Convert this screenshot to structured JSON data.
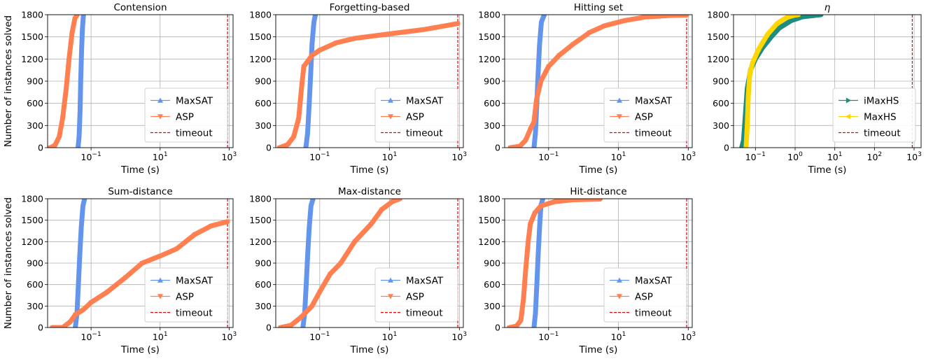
{
  "colors": {
    "maxsat": "#6495ED",
    "asp": "#FF7F50",
    "timeout": "#E8000B",
    "imaxhs": "#1E8C7E",
    "maxhs": "#FFD700"
  },
  "chart_data": [
    {
      "type": "line",
      "title": "Contension",
      "xlabel": "Time (s)",
      "ylabel": "Number of instances solved",
      "xscale": "log",
      "xlim": [
        0.0055,
        1300
      ],
      "ylim": [
        0,
        1800
      ],
      "yticks": [
        "0",
        "300",
        "600",
        "900",
        "1200",
        "1500",
        "1800"
      ],
      "xticks": [
        {
          "v": 0.1,
          "base": "10",
          "exp": "−1"
        },
        {
          "v": 10,
          "base": "10",
          "exp": "1"
        },
        {
          "v": 1000,
          "base": "10",
          "exp": "3"
        }
      ],
      "grid": true,
      "legend_position": "lower-right",
      "series": [
        {
          "name": "MaxSAT",
          "marker": "^",
          "color": "#6495ED",
          "points": [
            [
              0.042,
              0
            ],
            [
              0.045,
              150
            ],
            [
              0.048,
              500
            ],
            [
              0.05,
              900
            ],
            [
              0.053,
              1300
            ],
            [
              0.056,
              1600
            ],
            [
              0.06,
              1800
            ]
          ]
        },
        {
          "name": "ASP",
          "marker": "v",
          "color": "#FF7F50",
          "points": [
            [
              0.0065,
              0
            ],
            [
              0.009,
              30
            ],
            [
              0.012,
              150
            ],
            [
              0.015,
              400
            ],
            [
              0.019,
              800
            ],
            [
              0.023,
              1200
            ],
            [
              0.028,
              1550
            ],
            [
              0.034,
              1750
            ],
            [
              0.04,
              1800
            ]
          ]
        }
      ],
      "timeout": {
        "name": "timeout",
        "x": 900
      }
    },
    {
      "type": "line",
      "title": "Forgetting-based",
      "xlabel": "Time (s)",
      "ylabel": "",
      "xscale": "log",
      "xlim": [
        0.0055,
        1300
      ],
      "ylim": [
        0,
        1800
      ],
      "yticks": [
        "0",
        "300",
        "600",
        "900",
        "1200",
        "1500",
        "1800"
      ],
      "xticks": [
        {
          "v": 0.1,
          "base": "10",
          "exp": "−1"
        },
        {
          "v": 10,
          "base": "10",
          "exp": "1"
        },
        {
          "v": 1000,
          "base": "10",
          "exp": "3"
        }
      ],
      "grid": true,
      "legend_position": "lower-right",
      "series": [
        {
          "name": "MaxSAT",
          "marker": "^",
          "color": "#6495ED",
          "points": [
            [
              0.04,
              0
            ],
            [
              0.045,
              200
            ],
            [
              0.05,
              600
            ],
            [
              0.055,
              1000
            ],
            [
              0.06,
              1400
            ],
            [
              0.068,
              1700
            ],
            [
              0.075,
              1800
            ]
          ]
        },
        {
          "name": "ASP",
          "marker": "v",
          "color": "#FF7F50",
          "points": [
            [
              0.007,
              0
            ],
            [
              0.012,
              40
            ],
            [
              0.018,
              150
            ],
            [
              0.025,
              400
            ],
            [
              0.03,
              800
            ],
            [
              0.035,
              1100
            ],
            [
              0.06,
              1250
            ],
            [
              0.1,
              1320
            ],
            [
              0.3,
              1420
            ],
            [
              1,
              1480
            ],
            [
              10,
              1540
            ],
            [
              100,
              1600
            ],
            [
              900,
              1680
            ]
          ]
        }
      ],
      "timeout": {
        "name": "timeout",
        "x": 900
      }
    },
    {
      "type": "line",
      "title": "Hitting set",
      "xlabel": "Time (s)",
      "ylabel": "",
      "xscale": "log",
      "xlim": [
        0.0055,
        1300
      ],
      "ylim": [
        0,
        1800
      ],
      "yticks": [
        "0",
        "300",
        "600",
        "900",
        "1200",
        "1500",
        "1800"
      ],
      "xticks": [
        {
          "v": 0.1,
          "base": "10",
          "exp": "−1"
        },
        {
          "v": 10,
          "base": "10",
          "exp": "1"
        },
        {
          "v": 1000,
          "base": "10",
          "exp": "3"
        }
      ],
      "grid": true,
      "legend_position": "lower-right",
      "series": [
        {
          "name": "MaxSAT",
          "marker": "^",
          "color": "#6495ED",
          "points": [
            [
              0.038,
              0
            ],
            [
              0.042,
              200
            ],
            [
              0.046,
              600
            ],
            [
              0.05,
              1000
            ],
            [
              0.055,
              1400
            ],
            [
              0.062,
              1700
            ],
            [
              0.075,
              1800
            ]
          ]
        },
        {
          "name": "ASP",
          "marker": "v",
          "color": "#FF7F50",
          "points": [
            [
              0.008,
              0
            ],
            [
              0.015,
              20
            ],
            [
              0.022,
              100
            ],
            [
              0.03,
              250
            ],
            [
              0.038,
              350
            ],
            [
              0.045,
              650
            ],
            [
              0.06,
              900
            ],
            [
              0.1,
              1100
            ],
            [
              0.2,
              1250
            ],
            [
              0.5,
              1400
            ],
            [
              1.5,
              1560
            ],
            [
              4,
              1650
            ],
            [
              15,
              1720
            ],
            [
              60,
              1770
            ],
            [
              300,
              1790
            ],
            [
              900,
              1795
            ]
          ]
        }
      ],
      "timeout": {
        "name": "timeout",
        "x": 900
      }
    },
    {
      "type": "line",
      "title": "η",
      "xlabel": "Time (s)",
      "ylabel": "",
      "xscale": "log",
      "xlim": [
        0.028,
        1500
      ],
      "ylim": [
        0,
        1800
      ],
      "yticks": [
        "0",
        "300",
        "600",
        "900",
        "1200",
        "1500",
        "1800"
      ],
      "xticks": [
        {
          "v": 0.1,
          "base": "10",
          "exp": "−1"
        },
        {
          "v": 1,
          "base": "10",
          "exp": "0"
        },
        {
          "v": 10,
          "base": "10",
          "exp": "1"
        },
        {
          "v": 100,
          "base": "10",
          "exp": "2"
        },
        {
          "v": 1000,
          "base": "10",
          "exp": "3"
        }
      ],
      "grid": true,
      "legend_position": "lower-right",
      "series": [
        {
          "name": "iMaxHS",
          "marker": ">",
          "color": "#1E8C7E",
          "points": [
            [
              0.045,
              0
            ],
            [
              0.05,
              100
            ],
            [
              0.055,
              400
            ],
            [
              0.062,
              800
            ],
            [
              0.075,
              1050
            ],
            [
              0.1,
              1200
            ],
            [
              0.15,
              1350
            ],
            [
              0.25,
              1500
            ],
            [
              0.4,
              1620
            ],
            [
              0.8,
              1720
            ],
            [
              1.5,
              1770
            ],
            [
              3,
              1790
            ],
            [
              4.5,
              1800
            ]
          ]
        },
        {
          "name": "MaxHS",
          "marker": "<",
          "color": "#FFD700",
          "points": [
            [
              0.058,
              0
            ],
            [
              0.062,
              300
            ],
            [
              0.066,
              700
            ],
            [
              0.072,
              1000
            ],
            [
              0.085,
              1150
            ],
            [
              0.12,
              1330
            ],
            [
              0.2,
              1530
            ],
            [
              0.35,
              1680
            ],
            [
              0.6,
              1760
            ],
            [
              1,
              1795
            ],
            [
              1.2,
              1800
            ]
          ]
        }
      ],
      "timeout": {
        "name": "timeout",
        "x": 900
      }
    },
    {
      "type": "line",
      "title": "Sum-distance",
      "xlabel": "Time (s)",
      "ylabel": "Number of instances solved",
      "xscale": "log",
      "xlim": [
        0.0055,
        1300
      ],
      "ylim": [
        0,
        1800
      ],
      "yticks": [
        "0",
        "300",
        "600",
        "900",
        "1200",
        "1500",
        "1800"
      ],
      "xticks": [
        {
          "v": 0.1,
          "base": "10",
          "exp": "−1"
        },
        {
          "v": 10,
          "base": "10",
          "exp": "1"
        },
        {
          "v": 1000,
          "base": "10",
          "exp": "3"
        }
      ],
      "grid": true,
      "legend_position": "lower-right",
      "series": [
        {
          "name": "MaxSAT",
          "marker": "^",
          "color": "#6495ED",
          "points": [
            [
              0.035,
              0
            ],
            [
              0.039,
              200
            ],
            [
              0.043,
              600
            ],
            [
              0.047,
              1000
            ],
            [
              0.052,
              1400
            ],
            [
              0.058,
              1700
            ],
            [
              0.065,
              1800
            ]
          ]
        },
        {
          "name": "ASP",
          "marker": "v",
          "color": "#FF7F50",
          "points": [
            [
              0.0075,
              0
            ],
            [
              0.015,
              0
            ],
            [
              0.025,
              80
            ],
            [
              0.035,
              180
            ],
            [
              0.06,
              250
            ],
            [
              0.1,
              350
            ],
            [
              0.3,
              500
            ],
            [
              1,
              700
            ],
            [
              3,
              900
            ],
            [
              10,
              1000
            ],
            [
              30,
              1100
            ],
            [
              100,
              1300
            ],
            [
              300,
              1420
            ],
            [
              900,
              1480
            ]
          ]
        }
      ],
      "timeout": {
        "name": "timeout",
        "x": 900
      }
    },
    {
      "type": "line",
      "title": "Max-distance",
      "xlabel": "Time (s)",
      "ylabel": "",
      "xscale": "log",
      "xlim": [
        0.0055,
        1300
      ],
      "ylim": [
        0,
        1800
      ],
      "yticks": [
        "0",
        "300",
        "600",
        "900",
        "1200",
        "1500",
        "1800"
      ],
      "xticks": [
        {
          "v": 0.1,
          "base": "10",
          "exp": "−1"
        },
        {
          "v": 10,
          "base": "10",
          "exp": "1"
        },
        {
          "v": 1000,
          "base": "10",
          "exp": "3"
        }
      ],
      "grid": true,
      "legend_position": "lower-right",
      "series": [
        {
          "name": "MaxSAT",
          "marker": "^",
          "color": "#6495ED",
          "points": [
            [
              0.033,
              0
            ],
            [
              0.037,
              200
            ],
            [
              0.041,
              600
            ],
            [
              0.045,
              1000
            ],
            [
              0.05,
              1400
            ],
            [
              0.056,
              1700
            ],
            [
              0.064,
              1800
            ]
          ]
        },
        {
          "name": "ASP",
          "marker": "v",
          "color": "#FF7F50",
          "points": [
            [
              0.0075,
              0
            ],
            [
              0.015,
              30
            ],
            [
              0.03,
              150
            ],
            [
              0.06,
              300
            ],
            [
              0.1,
              500
            ],
            [
              0.2,
              750
            ],
            [
              0.4,
              900
            ],
            [
              1,
              1200
            ],
            [
              3,
              1450
            ],
            [
              6,
              1650
            ],
            [
              12,
              1760
            ],
            [
              20,
              1800
            ]
          ]
        }
      ],
      "timeout": {
        "name": "timeout",
        "x": 900
      }
    },
    {
      "type": "line",
      "title": "Hit-distance",
      "xlabel": "Time (s)",
      "ylabel": "",
      "xscale": "log",
      "xlim": [
        0.0055,
        1300
      ],
      "ylim": [
        0,
        1800
      ],
      "yticks": [
        "0",
        "300",
        "600",
        "900",
        "1200",
        "1500",
        "1800"
      ],
      "xticks": [
        {
          "v": 0.1,
          "base": "10",
          "exp": "−1"
        },
        {
          "v": 10,
          "base": "10",
          "exp": "1"
        },
        {
          "v": 1000,
          "base": "10",
          "exp": "3"
        }
      ],
      "grid": true,
      "legend_position": "lower-right",
      "series": [
        {
          "name": "MaxSAT",
          "marker": "^",
          "color": "#6495ED",
          "points": [
            [
              0.038,
              0
            ],
            [
              0.042,
              200
            ],
            [
              0.046,
              600
            ],
            [
              0.05,
              1000
            ],
            [
              0.055,
              1400
            ],
            [
              0.06,
              1700
            ],
            [
              0.068,
              1800
            ]
          ]
        },
        {
          "name": "ASP",
          "marker": "v",
          "color": "#FF7F50",
          "points": [
            [
              0.0075,
              0
            ],
            [
              0.012,
              20
            ],
            [
              0.016,
              100
            ],
            [
              0.019,
              400
            ],
            [
              0.022,
              800
            ],
            [
              0.026,
              1200
            ],
            [
              0.03,
              1450
            ],
            [
              0.04,
              1600
            ],
            [
              0.06,
              1700
            ],
            [
              0.15,
              1760
            ],
            [
              0.5,
              1785
            ],
            [
              3,
              1795
            ]
          ]
        }
      ],
      "timeout": {
        "name": "timeout",
        "x": 900
      }
    }
  ]
}
